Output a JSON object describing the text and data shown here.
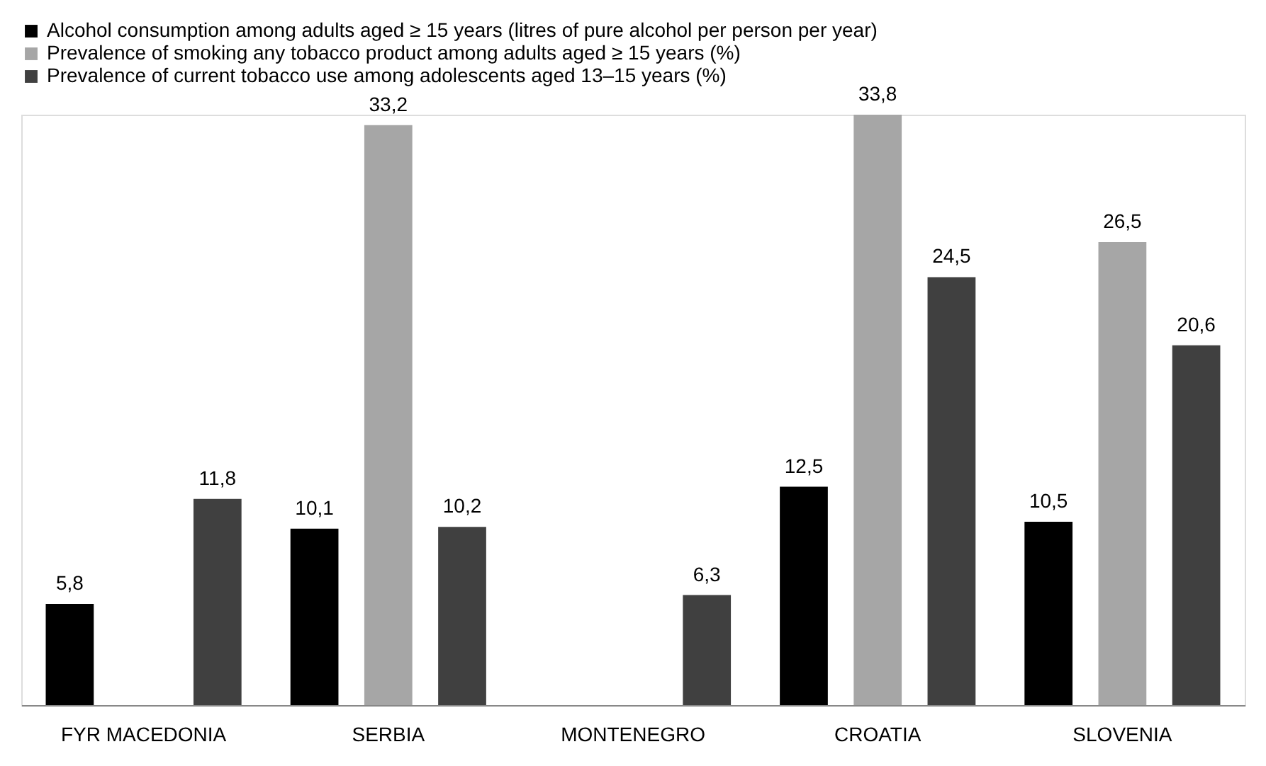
{
  "chart_data": {
    "type": "bar",
    "categories": [
      "FYR MACEDONIA",
      "SERBIA",
      "MONTENEGRO",
      "CROATIA",
      "SLOVENIA"
    ],
    "series": [
      {
        "name": "Alcohol consumption among adults aged ≥ 15 years (litres of pure alcohol per person per year)",
        "color": "#000000",
        "values": [
          5.8,
          10.1,
          null,
          12.5,
          10.5
        ],
        "value_labels": [
          "5,8",
          "10,1",
          null,
          "12,5",
          "10,5"
        ]
      },
      {
        "name": "Prevalence of smoking any tobacco product among adults aged ≥ 15 years (%)",
        "color": "#a6a6a6",
        "values": [
          null,
          33.2,
          null,
          33.8,
          26.5
        ],
        "value_labels": [
          null,
          "33,2",
          null,
          "33,8",
          "26,5"
        ]
      },
      {
        "name": "Prevalence of current tobacco use among adolescents aged 13–15 years (%)",
        "color": "#404040",
        "values": [
          11.8,
          10.2,
          6.3,
          24.5,
          20.6
        ],
        "value_labels": [
          "11,8",
          "10,2",
          "6,3",
          "24,5",
          "20,6"
        ]
      }
    ],
    "legend": "top"
  }
}
